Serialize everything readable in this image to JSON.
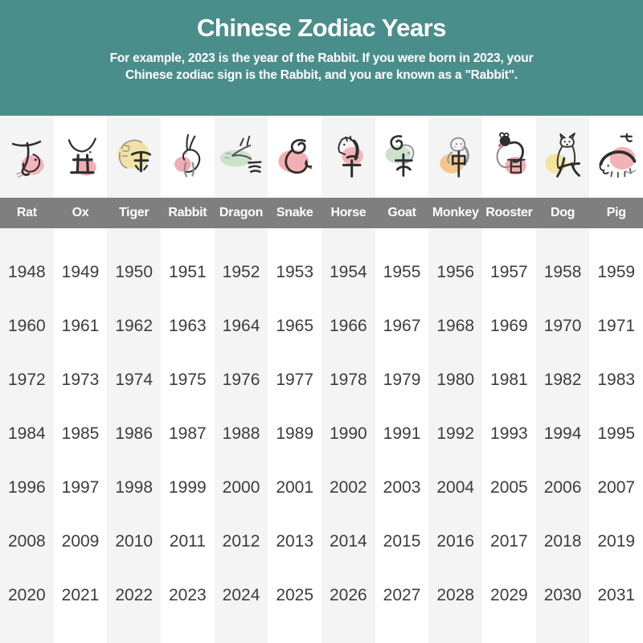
{
  "header": {
    "title": "Chinese Zodiac Years",
    "subtitle_line1": "For example, 2023 is the year of the Rabbit. If you were born in 2023, your",
    "subtitle_line2": "Chinese zodiac sign is the Rabbit, and you are known as a \"Rabbit\".",
    "background_color": "#4A8E8B",
    "text_color": "#FFFFFF"
  },
  "table": {
    "name_bar_color": "#7F7F7F",
    "alt_column_color": "#F4F4F4",
    "year_text_color": "#3D3D3D",
    "columns": [
      {
        "name": "Rat",
        "icon": "rat-icon",
        "blob_color": "#F2B5B8",
        "years": [
          1948,
          1960,
          1972,
          1984,
          1996,
          2008,
          2020
        ]
      },
      {
        "name": "Ox",
        "icon": "ox-icon",
        "blob_color": "#F2AEB2",
        "years": [
          1949,
          1961,
          1973,
          1985,
          1997,
          2009,
          2021
        ]
      },
      {
        "name": "Tiger",
        "icon": "tiger-icon",
        "blob_color": "#F1E3A3",
        "years": [
          1950,
          1962,
          1974,
          1986,
          1998,
          2010,
          2022
        ]
      },
      {
        "name": "Rabbit",
        "icon": "rabbit-icon",
        "blob_color": "#F0ACB3",
        "years": [
          1951,
          1963,
          1975,
          1987,
          1999,
          2011,
          2023
        ]
      },
      {
        "name": "Dragon",
        "icon": "dragon-icon",
        "blob_color": "#CDE2CB",
        "years": [
          1952,
          1964,
          1976,
          1988,
          2000,
          2012,
          2024
        ]
      },
      {
        "name": "Snake",
        "icon": "snake-icon",
        "blob_color": "#F3B0B4",
        "years": [
          1953,
          1965,
          1977,
          1989,
          2001,
          2013,
          2025
        ]
      },
      {
        "name": "Horse",
        "icon": "horse-icon",
        "blob_color": "#F3B3B6",
        "years": [
          1954,
          1966,
          1978,
          1990,
          2002,
          2014,
          2026
        ]
      },
      {
        "name": "Goat",
        "icon": "goat-icon",
        "blob_color": "#CDE2CB",
        "years": [
          1955,
          1967,
          1979,
          1991,
          2003,
          2015,
          2027
        ]
      },
      {
        "name": "Monkey",
        "icon": "monkey-icon",
        "blob_color": "#F2C78F",
        "years": [
          1956,
          1968,
          1980,
          1992,
          2004,
          2016,
          2028
        ]
      },
      {
        "name": "Rooster",
        "icon": "rooster-icon",
        "blob_color": "#F3AEB2",
        "years": [
          1957,
          1969,
          1981,
          1993,
          2005,
          2017,
          2029
        ]
      },
      {
        "name": "Dog",
        "icon": "dog-icon",
        "blob_color": "#F4E59E",
        "years": [
          1958,
          1970,
          1982,
          1994,
          2006,
          2018,
          2030
        ]
      },
      {
        "name": "Pig",
        "icon": "pig-icon",
        "blob_color": "#F3B3B6",
        "years": [
          1959,
          1971,
          1983,
          1995,
          2007,
          2019,
          2031
        ]
      }
    ]
  },
  "chart_data": {
    "type": "table",
    "title": "Chinese Zodiac Years",
    "subtitle": "For example, 2023 is the year of the Rabbit. If you were born in 2023, your Chinese zodiac sign is the Rabbit, and you are known as a \"Rabbit\".",
    "columns": [
      "Rat",
      "Ox",
      "Tiger",
      "Rabbit",
      "Dragon",
      "Snake",
      "Horse",
      "Goat",
      "Monkey",
      "Rooster",
      "Dog",
      "Pig"
    ],
    "rows": [
      [
        1948,
        1949,
        1950,
        1951,
        1952,
        1953,
        1954,
        1955,
        1956,
        1957,
        1958,
        1959
      ],
      [
        1960,
        1961,
        1962,
        1963,
        1964,
        1965,
        1966,
        1967,
        1968,
        1969,
        1970,
        1971
      ],
      [
        1972,
        1973,
        1974,
        1975,
        1976,
        1977,
        1978,
        1979,
        1980,
        1981,
        1982,
        1983
      ],
      [
        1984,
        1985,
        1986,
        1987,
        1988,
        1989,
        1990,
        1991,
        1992,
        1993,
        1994,
        1995
      ],
      [
        1996,
        1997,
        1998,
        1999,
        2000,
        2001,
        2002,
        2003,
        2004,
        2005,
        2006,
        2007
      ],
      [
        2008,
        2009,
        2010,
        2011,
        2012,
        2013,
        2014,
        2015,
        2016,
        2017,
        2018,
        2019
      ],
      [
        2020,
        2021,
        2022,
        2023,
        2024,
        2025,
        2026,
        2027,
        2028,
        2029,
        2030,
        2031
      ]
    ]
  }
}
